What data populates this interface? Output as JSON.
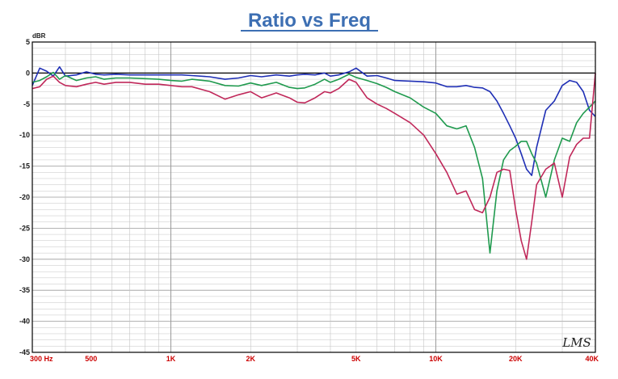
{
  "chart_data": {
    "type": "line",
    "title": "Ratio vs Freq",
    "ylabel": "dBR",
    "x_scale": "log",
    "xlim": [
      300,
      40000
    ],
    "ylim": [
      -45,
      5
    ],
    "grid": true,
    "x_tick_labels": [
      {
        "value": 300,
        "label": "300  Hz"
      },
      {
        "value": 500,
        "label": "500"
      },
      {
        "value": 1000,
        "label": "1K"
      },
      {
        "value": 2000,
        "label": "2K"
      },
      {
        "value": 5000,
        "label": "5K"
      },
      {
        "value": 10000,
        "label": "10K"
      },
      {
        "value": 20000,
        "label": "20K"
      },
      {
        "value": 40000,
        "label": "40K"
      }
    ],
    "y_ticks": [
      5,
      0,
      -5,
      -10,
      -15,
      -20,
      -25,
      -30,
      -35,
      -40,
      -45
    ],
    "reference_line": 0,
    "series": [
      {
        "color": "#1f2fb5",
        "x": [
          300,
          320,
          340,
          360,
          380,
          400,
          440,
          480,
          520,
          560,
          620,
          700,
          800,
          900,
          1000,
          1100,
          1200,
          1400,
          1600,
          1800,
          2000,
          2200,
          2500,
          2800,
          3000,
          3200,
          3500,
          3800,
          4000,
          4300,
          4700,
          5000,
          5500,
          6000,
          6500,
          7000,
          8000,
          9000,
          10000,
          11000,
          12000,
          13000,
          14000,
          15000,
          16000,
          17000,
          18000,
          19000,
          20000,
          21000,
          22000,
          23000,
          24000,
          26000,
          28000,
          30000,
          32000,
          34000,
          36000,
          38000,
          40000
        ],
        "values": [
          -2.0,
          0.8,
          0.3,
          -0.5,
          1.0,
          -0.5,
          -0.3,
          0.2,
          -0.2,
          -0.3,
          -0.2,
          -0.3,
          -0.3,
          -0.3,
          -0.3,
          -0.3,
          -0.4,
          -0.6,
          -1.0,
          -0.8,
          -0.4,
          -0.6,
          -0.3,
          -0.5,
          -0.3,
          -0.2,
          -0.3,
          0.0,
          -0.5,
          -0.3,
          0.2,
          0.8,
          -0.5,
          -0.4,
          -0.8,
          -1.2,
          -1.3,
          -1.4,
          -1.6,
          -2.2,
          -2.2,
          -2.0,
          -2.3,
          -2.4,
          -3.0,
          -4.5,
          -6.5,
          -8.5,
          -10.5,
          -13.0,
          -15.5,
          -16.5,
          -12.0,
          -6.0,
          -4.5,
          -2.0,
          -1.2,
          -1.5,
          -3.0,
          -6.0,
          -7.0
        ]
      },
      {
        "color": "#1f9a4e",
        "x": [
          300,
          320,
          340,
          360,
          380,
          400,
          440,
          480,
          520,
          560,
          620,
          700,
          800,
          900,
          1000,
          1100,
          1200,
          1400,
          1600,
          1800,
          2000,
          2200,
          2500,
          2800,
          3000,
          3200,
          3500,
          3800,
          4000,
          4300,
          4700,
          5000,
          5500,
          6000,
          6500,
          7000,
          8000,
          9000,
          10000,
          11000,
          12000,
          13000,
          14000,
          15000,
          16000,
          17000,
          18000,
          19000,
          20000,
          21000,
          22000,
          23000,
          24000,
          26000,
          28000,
          30000,
          32000,
          34000,
          36000,
          38000,
          40000
        ],
        "values": [
          -1.5,
          -1.2,
          -0.6,
          0.1,
          -1.0,
          -0.4,
          -1.2,
          -0.8,
          -0.6,
          -1.0,
          -0.8,
          -0.8,
          -0.9,
          -1.0,
          -1.2,
          -1.3,
          -1.0,
          -1.3,
          -2.0,
          -2.1,
          -1.6,
          -2.0,
          -1.5,
          -2.3,
          -2.5,
          -2.4,
          -1.8,
          -1.0,
          -1.5,
          -1.0,
          -0.2,
          -0.7,
          -1.2,
          -1.7,
          -2.3,
          -3.0,
          -4.0,
          -5.5,
          -6.5,
          -8.5,
          -9.0,
          -8.5,
          -12.0,
          -17.0,
          -29.0,
          -19.0,
          -14.0,
          -12.5,
          -11.8,
          -11.0,
          -11.0,
          -13.0,
          -14.5,
          -20.0,
          -14.0,
          -10.5,
          -11.0,
          -8.0,
          -6.5,
          -5.5,
          -4.5
        ]
      },
      {
        "color": "#c0285a",
        "x": [
          300,
          320,
          340,
          360,
          380,
          400,
          440,
          480,
          520,
          560,
          620,
          700,
          800,
          900,
          1000,
          1100,
          1200,
          1400,
          1600,
          1800,
          2000,
          2200,
          2500,
          2800,
          3000,
          3200,
          3500,
          3800,
          4000,
          4300,
          4700,
          5000,
          5500,
          6000,
          6500,
          7000,
          8000,
          9000,
          10000,
          11000,
          12000,
          13000,
          14000,
          15000,
          16000,
          17000,
          18000,
          19000,
          20000,
          21000,
          22000,
          23000,
          24000,
          26000,
          28000,
          30000,
          32000,
          34000,
          36000,
          38000,
          40000
        ],
        "values": [
          -2.5,
          -2.2,
          -1.0,
          -0.5,
          -1.5,
          -2.0,
          -2.2,
          -1.8,
          -1.5,
          -1.8,
          -1.5,
          -1.5,
          -1.8,
          -1.8,
          -2.0,
          -2.2,
          -2.2,
          -3.0,
          -4.2,
          -3.5,
          -3.0,
          -4.0,
          -3.2,
          -4.0,
          -4.7,
          -4.8,
          -4.0,
          -3.0,
          -3.2,
          -2.5,
          -1.0,
          -1.5,
          -4.0,
          -5.0,
          -5.7,
          -6.5,
          -8.0,
          -10.0,
          -13.0,
          -16.0,
          -19.5,
          -19.0,
          -22.0,
          -22.5,
          -20.0,
          -16.0,
          -15.5,
          -15.7,
          -22.0,
          -27.0,
          -30.0,
          -24.0,
          -18.0,
          -15.5,
          -14.5,
          -20.0,
          -13.5,
          -11.5,
          -10.5,
          -10.5,
          0.0
        ]
      }
    ]
  },
  "watermark": "LMS",
  "colors": {
    "frame": "#000000",
    "grid": "#c4c4c4",
    "grid_major": "#9a9a9a",
    "zero_line": "#000000",
    "x_tick_label": "#cc0000"
  }
}
